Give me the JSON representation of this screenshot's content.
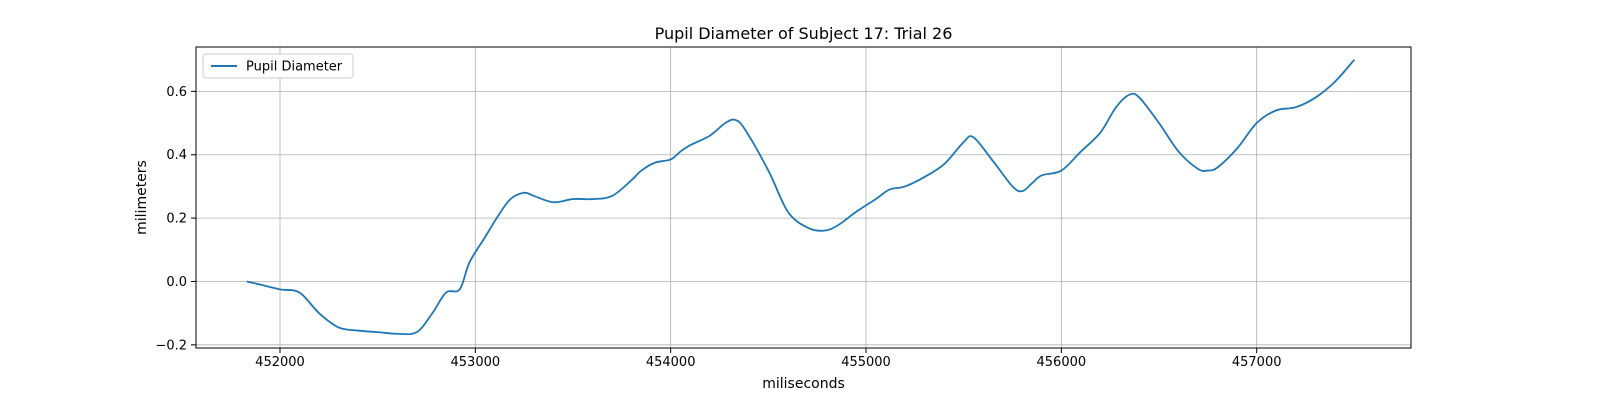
{
  "chart_data": {
    "type": "line",
    "title": "Pupil Diameter of Subject 17: Trial 26",
    "xlabel": "miliseconds",
    "ylabel": "milimeters",
    "xlim": [
      451570,
      457790
    ],
    "ylim": [
      -0.21,
      0.74
    ],
    "xticks": [
      452000,
      453000,
      454000,
      455000,
      456000,
      457000
    ],
    "yticks": [
      -0.2,
      0.0,
      0.2,
      0.4,
      0.6
    ],
    "ytick_labels": [
      "−0.2",
      "0.0",
      "0.2",
      "0.4",
      "0.6"
    ],
    "grid": true,
    "legend_position": "upper-left",
    "series": [
      {
        "name": "Pupil Diameter",
        "color": "#1f77b4",
        "x": [
          451830,
          451900,
          452000,
          452100,
          452200,
          452300,
          452400,
          452500,
          452600,
          452700,
          452780,
          452850,
          452920,
          452970,
          453050,
          453120,
          453180,
          453250,
          453300,
          453400,
          453500,
          453600,
          453700,
          453800,
          453850,
          453920,
          454000,
          454050,
          454100,
          454200,
          454280,
          454330,
          454380,
          454500,
          454600,
          454700,
          454780,
          454850,
          454950,
          455050,
          455120,
          455200,
          455300,
          455400,
          455500,
          455550,
          455650,
          455750,
          455800,
          455850,
          455900,
          456000,
          456100,
          456200,
          456280,
          456350,
          456400,
          456500,
          456600,
          456700,
          456750,
          456800,
          456900,
          457000,
          457100,
          457200,
          457300,
          457400,
          457500
        ],
        "y": [
          0.0,
          -0.01,
          -0.025,
          -0.035,
          -0.1,
          -0.145,
          -0.155,
          -0.16,
          -0.165,
          -0.16,
          -0.1,
          -0.035,
          -0.025,
          0.06,
          0.14,
          0.21,
          0.26,
          0.28,
          0.27,
          0.25,
          0.26,
          0.26,
          0.27,
          0.32,
          0.35,
          0.375,
          0.385,
          0.41,
          0.43,
          0.46,
          0.5,
          0.51,
          0.48,
          0.35,
          0.22,
          0.17,
          0.16,
          0.175,
          0.22,
          0.26,
          0.29,
          0.3,
          0.33,
          0.37,
          0.44,
          0.455,
          0.38,
          0.3,
          0.285,
          0.31,
          0.335,
          0.35,
          0.41,
          0.47,
          0.55,
          0.59,
          0.58,
          0.5,
          0.41,
          0.355,
          0.35,
          0.36,
          0.42,
          0.5,
          0.54,
          0.55,
          0.58,
          0.63,
          0.7
        ]
      }
    ]
  }
}
